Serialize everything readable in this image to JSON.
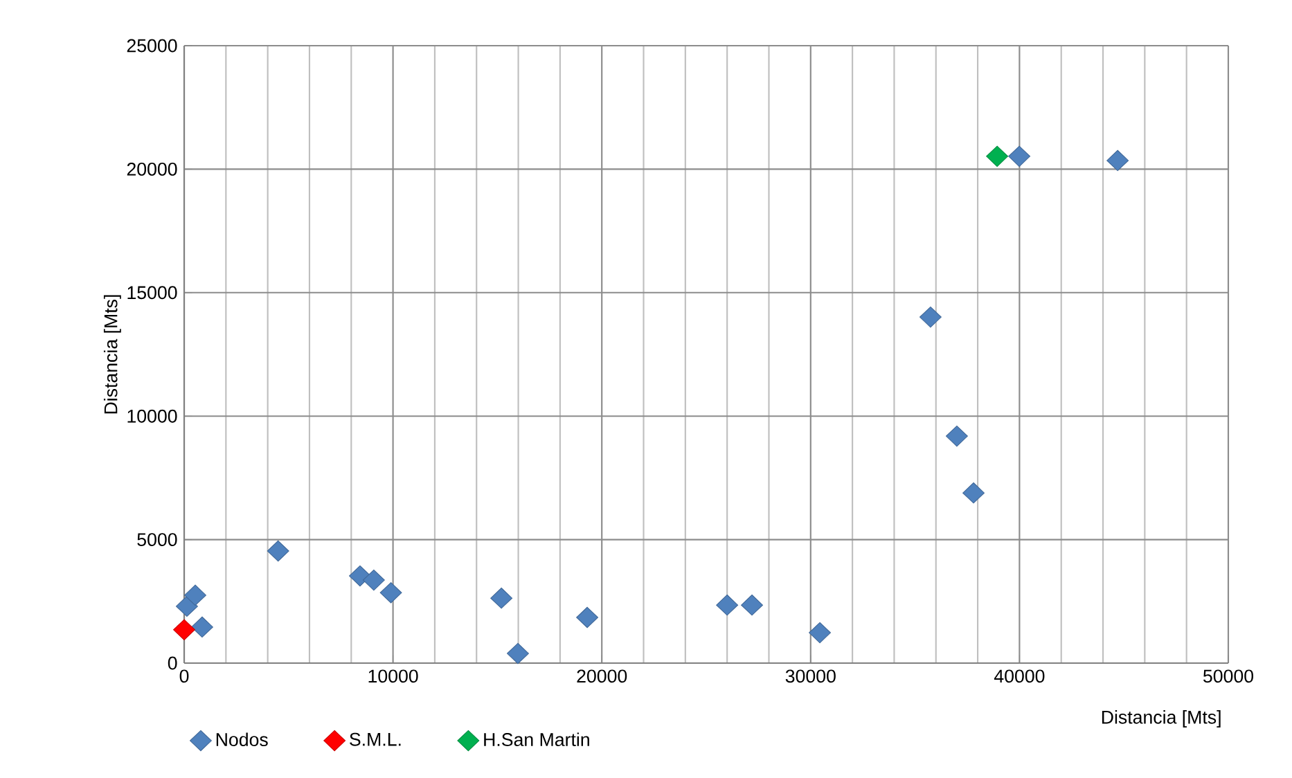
{
  "chart_data": {
    "type": "scatter",
    "xlabel": "Distancia [Mts]",
    "ylabel": "Distancia [Mts]",
    "xlim": [
      0,
      50000
    ],
    "ylim": [
      0,
      25000
    ],
    "xticks": [
      0,
      10000,
      20000,
      30000,
      40000,
      50000
    ],
    "yticks": [
      0,
      5000,
      10000,
      15000,
      20000,
      25000
    ],
    "grid": true,
    "legend": "bottom",
    "marker": "diamond",
    "series": [
      {
        "name": "Nodos",
        "color": "#4f81bd",
        "x": [
          130,
          530,
          860,
          4500,
          8420,
          9080,
          9700,
          9900,
          15190,
          15980,
          19300,
          26000,
          27190,
          30440,
          35740,
          37000,
          37800,
          39990,
          44700
        ],
        "values": [
          2300,
          2750,
          1460,
          4540,
          3530,
          3360,
          null,
          2850,
          2630,
          390,
          1850,
          2350,
          2350,
          1230,
          14010,
          9190,
          6890,
          20520,
          20350
        ]
      },
      {
        "name": "S.M.L.",
        "color": "#ff0000",
        "x": [
          0
        ],
        "values": [
          1350
        ]
      },
      {
        "name": "H.San Martin",
        "color": "#00b050",
        "x": [
          38930
        ],
        "values": [
          20520
        ]
      }
    ]
  }
}
